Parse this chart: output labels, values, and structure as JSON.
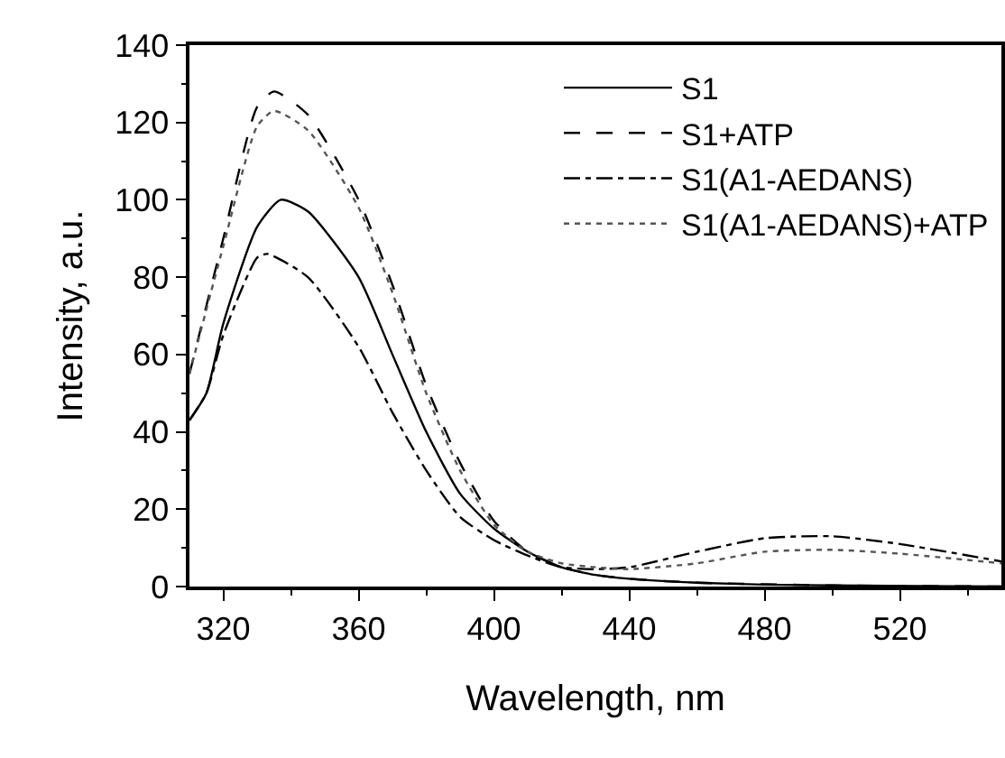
{
  "chart_data": {
    "type": "line",
    "xlabel": "Wavelength, nm",
    "ylabel": "Intensity, a.u.",
    "xlim": [
      310,
      550
    ],
    "xticks": [
      320,
      360,
      400,
      440,
      480,
      520
    ],
    "ylim": [
      0,
      140
    ],
    "yticks": [
      0,
      20,
      40,
      60,
      80,
      100,
      120,
      140
    ],
    "grid": false,
    "legend": "top right",
    "marker": "none",
    "series": [
      {
        "name": "S1",
        "color": "#000000",
        "line_style": "solid",
        "x": [
          310,
          315,
          320,
          330,
          337,
          345,
          360,
          370,
          380,
          390,
          400,
          410,
          420,
          430,
          440,
          460,
          480,
          500,
          550
        ],
        "values": [
          43,
          50,
          68,
          93,
          100,
          97,
          80,
          60,
          40,
          24,
          15,
          9,
          5,
          3,
          2,
          1,
          0.5,
          0.3,
          0
        ]
      },
      {
        "name": "S1+ATP",
        "color": "#000000",
        "line_style": "dashed",
        "x": [
          310,
          320,
          330,
          335,
          345,
          360,
          370,
          380,
          390,
          400,
          410,
          420,
          430,
          440,
          460,
          500,
          550
        ],
        "values": [
          55,
          90,
          124,
          128,
          122,
          100,
          78,
          52,
          32,
          17,
          9,
          5,
          3,
          2,
          1,
          0.3,
          0
        ]
      },
      {
        "name": "S1(A1-AEDANS)",
        "color": "#000000",
        "line_style": "dashdot",
        "x": [
          310,
          315,
          320,
          330,
          333,
          345,
          360,
          370,
          380,
          390,
          400,
          410,
          420,
          430,
          440,
          460,
          480,
          500,
          520,
          550
        ],
        "values": [
          43,
          50,
          65,
          85,
          86,
          80,
          62,
          45,
          30,
          18,
          12,
          8,
          5,
          4.5,
          5,
          9,
          12.5,
          13,
          11,
          6.5
        ]
      },
      {
        "name": "S1(A1-AEDANS)+ATP",
        "color": "#555555",
        "line_style": "dotted",
        "x": [
          310,
          320,
          330,
          335,
          345,
          360,
          370,
          380,
          390,
          400,
          410,
          420,
          430,
          440,
          460,
          480,
          500,
          520,
          550
        ],
        "values": [
          55,
          88,
          119,
          123,
          118,
          98,
          76,
          50,
          30,
          16,
          9,
          6,
          5,
          4.5,
          6,
          9,
          9.5,
          8.5,
          6
        ]
      }
    ]
  }
}
